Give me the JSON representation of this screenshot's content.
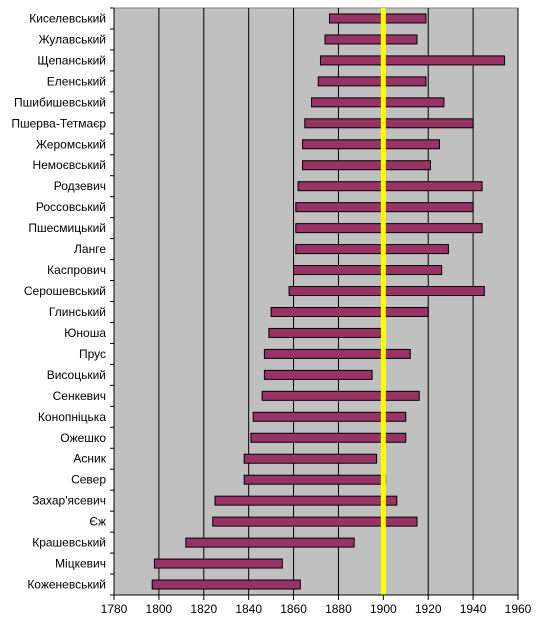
{
  "chart_data": {
    "type": "bar",
    "orientation": "horizontal",
    "style": "floating-range (lifespan timeline)",
    "title": "",
    "xlabel": "",
    "ylabel": "",
    "xlim": [
      1780,
      1960
    ],
    "x_ticks": [
      1780,
      1800,
      1820,
      1840,
      1860,
      1880,
      1900,
      1920,
      1940,
      1960
    ],
    "grid": "vertical major gridlines",
    "legend": "none",
    "reference_line": {
      "x": 1900,
      "color": "#ffff00"
    },
    "colors": {
      "plot_background": "#c0c0c0",
      "bar_fill": "#993366",
      "bar_border": "#000000",
      "gridline": "#000000"
    },
    "categories": [
      "Киселевський",
      "Жулавський",
      "Щепанський",
      "Еленський",
      "Пшибишевський",
      "Пшерва-Тетмаєр",
      "Жеромський",
      "Немоєвський",
      "Родзевич",
      "Россовський",
      "Пшесмицький",
      "Ланге",
      "Каспрович",
      "Серошевський",
      "Глинський",
      "Юноша",
      "Прус",
      "Висоцький",
      "Сенкевич",
      "Конопніцька",
      "Ожешко",
      "Асник",
      "Север",
      "Захар'ясевич",
      "Єж",
      "Крашевський",
      "Міцкевич",
      "Коженевський"
    ],
    "series": [
      {
        "start": [
          1876,
          1874,
          1872,
          1871,
          1868,
          1865,
          1864,
          1864,
          1862,
          1861,
          1861,
          1861,
          1860,
          1858,
          1850,
          1849,
          1847,
          1847,
          1846,
          1842,
          1841,
          1838,
          1838,
          1825,
          1824,
          1812,
          1798,
          1797
        ],
        "end": [
          1919,
          1915,
          1954,
          1919,
          1927,
          1940,
          1925,
          1921,
          1944,
          1940,
          1944,
          1929,
          1926,
          1945,
          1920,
          1899,
          1912,
          1895,
          1916,
          1910,
          1910,
          1897,
          1901,
          1906,
          1915,
          1887,
          1855,
          1863
        ]
      }
    ]
  }
}
